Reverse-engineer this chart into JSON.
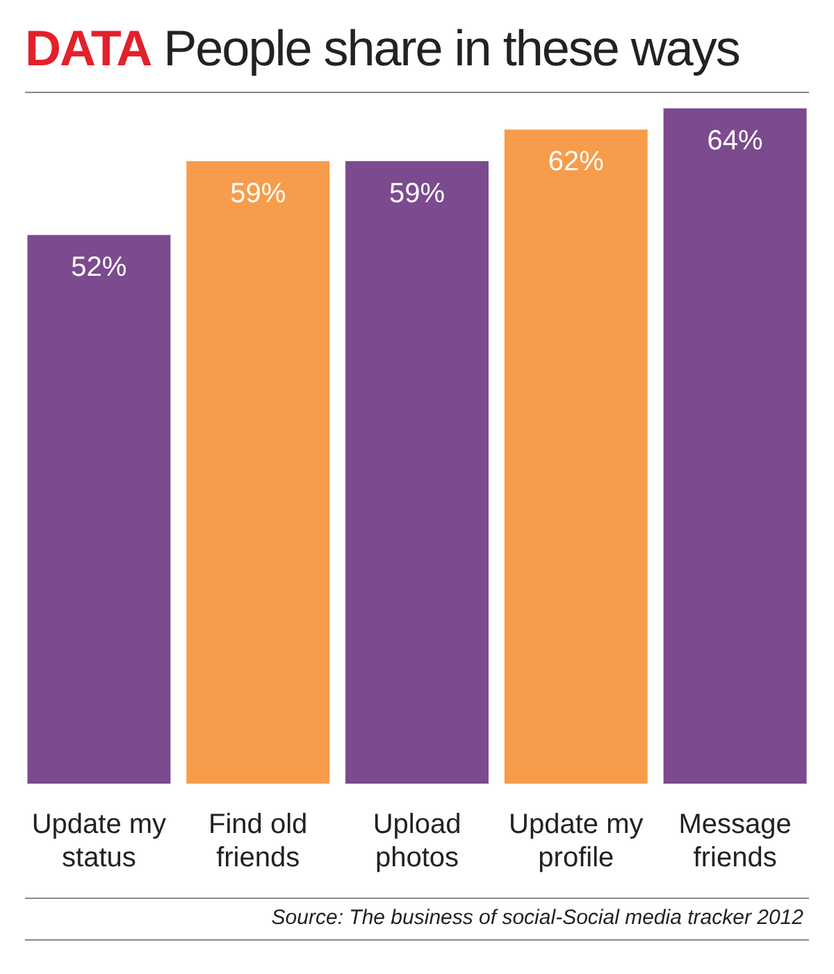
{
  "chart_data": {
    "type": "bar",
    "title": "DATA People share in these ways",
    "categories": [
      "Update my status",
      "Find old friends",
      "Upload photos",
      "Update my profile",
      "Message friends"
    ],
    "values": [
      52,
      59,
      59,
      62,
      64
    ],
    "colors": [
      "#7b4a8f",
      "#f79c4a",
      "#7b4a8f",
      "#f79c4a",
      "#7b4a8f"
    ],
    "value_labels": [
      "52%",
      "59%",
      "59%",
      "62%",
      "64%"
    ],
    "ylim": [
      0,
      64
    ],
    "tick_labels": false,
    "grid": false,
    "legend": false,
    "annotations": [
      "Source: The business of social-Social media tracker 2012"
    ]
  }
}
